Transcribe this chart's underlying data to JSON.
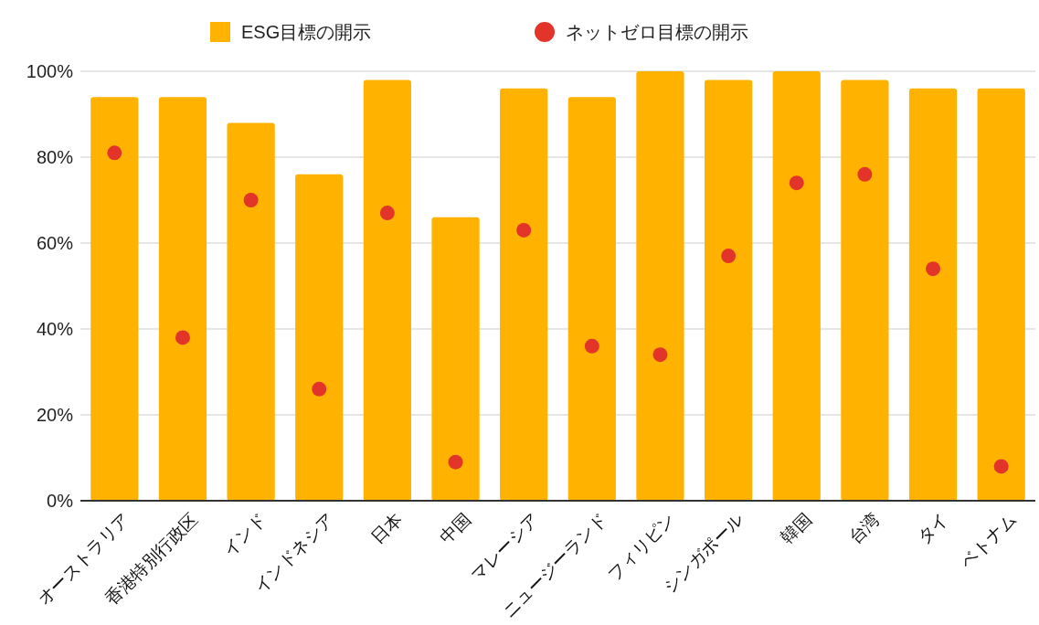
{
  "chart_data": {
    "type": "bar",
    "categories": [
      "オーストラリア",
      "香港特別行政区",
      "インド",
      "インドネシア",
      "日本",
      "中国",
      "マレーシア",
      "ニュージーランド",
      "フィリピン",
      "シンガポール",
      "韓国",
      "台湾",
      "タイ",
      "ベトナム"
    ],
    "series": [
      {
        "name": "ESG目標の開示",
        "color": "#ffb300",
        "values": [
          94,
          94,
          88,
          76,
          98,
          66,
          96,
          94,
          100,
          98,
          100,
          98,
          96,
          96
        ]
      },
      {
        "name": "ネットゼロ目標の開示",
        "type": "scatter",
        "color": "#e3342a",
        "values": [
          81,
          38,
          70,
          26,
          67,
          9,
          63,
          36,
          34,
          57,
          74,
          76,
          54,
          8
        ]
      }
    ],
    "ylim": [
      0,
      100
    ],
    "yticks": [
      {
        "value": 0,
        "label": "0%"
      },
      {
        "value": 20,
        "label": "20%"
      },
      {
        "value": 40,
        "label": "40%"
      },
      {
        "value": 60,
        "label": "60%"
      },
      {
        "value": 80,
        "label": "80%"
      },
      {
        "value": 100,
        "label": "100%"
      }
    ],
    "grid": "y",
    "legend": "top",
    "marker": "circle"
  }
}
